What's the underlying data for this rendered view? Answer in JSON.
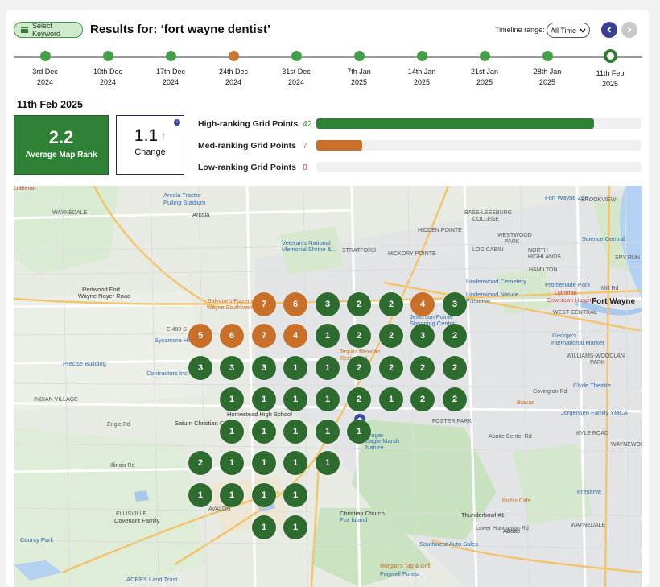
{
  "header": {
    "select_keyword_label": "Select Keyword",
    "results_title": "Results for: ‘fort wayne dentist’",
    "timeline_range_label": "Timeline range:",
    "timeline_range_value": "All Time",
    "prev_icon": "chevron-left-icon",
    "next_icon": "chevron-right-icon"
  },
  "timeline": [
    {
      "line1": "3rd Dec",
      "line2": "2024",
      "status": "green"
    },
    {
      "line1": "10th Dec",
      "line2": "2024",
      "status": "green"
    },
    {
      "line1": "17th Dec",
      "line2": "2024",
      "status": "green"
    },
    {
      "line1": "24th Dec",
      "line2": "2024",
      "status": "orange"
    },
    {
      "line1": "31st Dec",
      "line2": "2024",
      "status": "green"
    },
    {
      "line1": "7th Jan",
      "line2": "2025",
      "status": "green"
    },
    {
      "line1": "14th Jan",
      "line2": "2025",
      "status": "green"
    },
    {
      "line1": "21st Jan",
      "line2": "2025",
      "status": "green"
    },
    {
      "line1": "28th Jan",
      "line2": "2025",
      "status": "green"
    },
    {
      "line1": "11th Feb",
      "line2": "2025",
      "status": "active"
    }
  ],
  "summary": {
    "date": "11th Feb 2025",
    "avg_rank_value": "2.2",
    "avg_rank_label": "Average Map Rank",
    "change_value": "1.1",
    "change_label": "Change",
    "change_icon": "arrow-up-icon",
    "info_icon": "info-icon"
  },
  "ranking_bars": [
    {
      "label": "High-ranking Grid Points",
      "count": "42",
      "fraction": 0.855,
      "color": "#2e8135"
    },
    {
      "label": "Med-ranking Grid Points",
      "count": "7",
      "fraction": 0.142,
      "color": "#c8702a"
    },
    {
      "label": "Low-ranking Grid Points",
      "count": "0",
      "fraction": 0,
      "color": "#d04040"
    }
  ],
  "map_labels": [
    {
      "text": "Arcola Tractor",
      "kind": "poi"
    },
    {
      "text": "Pulling Stadium",
      "kind": "poi"
    },
    {
      "text": "Arcola",
      "kind": "dark"
    },
    {
      "text": "Fort Wayne Zoo",
      "kind": "poi"
    },
    {
      "text": "BASS-LEESBURG",
      "kind": "plain"
    },
    {
      "text": "COLLEGE",
      "kind": "plain"
    },
    {
      "text": "BROOKVIEW",
      "kind": "plain"
    },
    {
      "text": "Veteran's National",
      "kind": "poi"
    },
    {
      "text": "Memorial Shrine &...",
      "kind": "poi"
    },
    {
      "text": "STRATFORD",
      "kind": "plain"
    },
    {
      "text": "HICKORY POINTE",
      "kind": "plain"
    },
    {
      "text": "HIDDEN POINTE",
      "kind": "plain"
    },
    {
      "text": "WESTWOOD",
      "kind": "plain"
    },
    {
      "text": "PARK",
      "kind": "plain"
    },
    {
      "text": "LOG CABIN",
      "kind": "plain"
    },
    {
      "text": "Science Central",
      "kind": "poi"
    },
    {
      "text": "NORTH",
      "kind": "plain"
    },
    {
      "text": "HIGHLANDS",
      "kind": "plain"
    },
    {
      "text": "SPY RUN",
      "kind": "plain"
    },
    {
      "text": "HAMILTON",
      "kind": "plain"
    },
    {
      "text": "Redwood Fort",
      "kind": "dark"
    },
    {
      "text": "Wayne Noyer Road",
      "kind": "dark"
    },
    {
      "text": "Salvator's Pizzeria",
      "kind": "orange"
    },
    {
      "text": "Wayne Southwest",
      "kind": "orange"
    },
    {
      "text": "Lindenwood Cemetery",
      "kind": "poi"
    },
    {
      "text": "Lindenwood Nature",
      "kind": "poi"
    },
    {
      "text": "Preserve",
      "kind": "poi"
    },
    {
      "text": "Promenade Park",
      "kind": "poi"
    },
    {
      "text": "Lutheran",
      "kind": "red"
    },
    {
      "text": "Downtown Hospital",
      "kind": "red"
    },
    {
      "text": "Fort Wayne",
      "kind": "city"
    },
    {
      "text": "WEST CENTRAL",
      "kind": "plain"
    },
    {
      "text": "Jefferson Pointe",
      "kind": "poi"
    },
    {
      "text": "Shopping Center",
      "kind": "poi"
    },
    {
      "text": "Sycamore Hills Golf",
      "kind": "poi"
    },
    {
      "text": "George's",
      "kind": "poi"
    },
    {
      "text": "International Market",
      "kind": "poi"
    },
    {
      "text": "Tequila Mexican",
      "kind": "orange"
    },
    {
      "text": "Restaurant",
      "kind": "orange"
    },
    {
      "text": "WILLIAMS-WOODLAN",
      "kind": "plain"
    },
    {
      "text": "PARK",
      "kind": "plain"
    },
    {
      "text": "Precise Building",
      "kind": "poi"
    },
    {
      "text": "Contractors Inc.",
      "kind": "poi"
    },
    {
      "text": "Covington Rd",
      "kind": "plain"
    },
    {
      "text": "Clyde Theatre",
      "kind": "poi"
    },
    {
      "text": "Bravas",
      "kind": "orange"
    },
    {
      "text": "INDIAN VILLAGE",
      "kind": "plain"
    },
    {
      "text": "Saturn Christian Church",
      "kind": "dark"
    },
    {
      "text": "Homestead High School",
      "kind": "dark"
    },
    {
      "text": "Jorgensen Family YMCA",
      "kind": "poi"
    },
    {
      "text": "FOSTER PARK",
      "kind": "plain"
    },
    {
      "text": "Engle Rd",
      "kind": "plain"
    },
    {
      "text": "Aboite Center Rd",
      "kind": "plain"
    },
    {
      "text": "KYLE ROAD",
      "kind": "plain"
    },
    {
      "text": "WAYNEWOOD",
      "kind": "plain"
    },
    {
      "text": "Kroger",
      "kind": "poi"
    },
    {
      "text": "Eagle Marsh",
      "kind": "poi"
    },
    {
      "text": "Nature",
      "kind": "poi"
    },
    {
      "text": "Preserve",
      "kind": "poi"
    },
    {
      "text": "Thunderbowl #1",
      "kind": "dark"
    },
    {
      "text": "Rich's Cafe",
      "kind": "orange"
    },
    {
      "text": "WAYNEDALE",
      "kind": "plain"
    },
    {
      "text": "AVALON",
      "kind": "plain"
    },
    {
      "text": "ELLISVILLE",
      "kind": "plain"
    },
    {
      "text": "Covenant Family",
      "kind": "dark"
    },
    {
      "text": "Christian Church",
      "kind": "dark"
    },
    {
      "text": "Fox Island",
      "kind": "poi"
    },
    {
      "text": "County Park",
      "kind": "poi"
    },
    {
      "text": "Southwest Auto Sales",
      "kind": "poi"
    },
    {
      "text": "Lower Huntington Rd",
      "kind": "plain"
    },
    {
      "text": "Morgan's Tap & Grill",
      "kind": "orange"
    },
    {
      "text": "Fogwell Forest",
      "kind": "poi"
    },
    {
      "text": "ACRES Land Trust",
      "kind": "poi"
    },
    {
      "text": "Aboite",
      "kind": "dark"
    },
    {
      "text": "WAYNEDALE",
      "kind": "plain"
    },
    {
      "text": "E 400 S",
      "kind": "plain"
    },
    {
      "text": "Illinois Rd",
      "kind": "plain"
    },
    {
      "text": "Mill Rd",
      "kind": "plain"
    },
    {
      "text": "Lutheran",
      "kind": "red"
    }
  ],
  "grid_pins": [
    {
      "rank": "7",
      "level": "med"
    },
    {
      "rank": "6",
      "level": "med"
    },
    {
      "rank": "3",
      "level": "high"
    },
    {
      "rank": "2",
      "level": "high"
    },
    {
      "rank": "2",
      "level": "high"
    },
    {
      "rank": "4",
      "level": "med"
    },
    {
      "rank": "3",
      "level": "high"
    },
    {
      "rank": "5",
      "level": "med"
    },
    {
      "rank": "6",
      "level": "med"
    },
    {
      "rank": "7",
      "level": "med"
    },
    {
      "rank": "4",
      "level": "med"
    },
    {
      "rank": "1",
      "level": "high"
    },
    {
      "rank": "2",
      "level": "high"
    },
    {
      "rank": "2",
      "level": "high"
    },
    {
      "rank": "3",
      "level": "high"
    },
    {
      "rank": "2",
      "level": "high"
    },
    {
      "rank": "3",
      "level": "high"
    },
    {
      "rank": "3",
      "level": "high"
    },
    {
      "rank": "3",
      "level": "high"
    },
    {
      "rank": "1",
      "level": "high"
    },
    {
      "rank": "1",
      "level": "high"
    },
    {
      "rank": "2",
      "level": "high"
    },
    {
      "rank": "2",
      "level": "high"
    },
    {
      "rank": "2",
      "level": "high"
    },
    {
      "rank": "2",
      "level": "high"
    },
    {
      "rank": "1",
      "level": "high"
    },
    {
      "rank": "1",
      "level": "high"
    },
    {
      "rank": "1",
      "level": "high"
    },
    {
      "rank": "1",
      "level": "high"
    },
    {
      "rank": "2",
      "level": "high"
    },
    {
      "rank": "1",
      "level": "high"
    },
    {
      "rank": "2",
      "level": "high"
    },
    {
      "rank": "2",
      "level": "high"
    },
    {
      "rank": "1",
      "level": "high"
    },
    {
      "rank": "1",
      "level": "high"
    },
    {
      "rank": "1",
      "level": "high"
    },
    {
      "rank": "1",
      "level": "high"
    },
    {
      "rank": "1",
      "level": "high"
    },
    {
      "rank": "2",
      "level": "high"
    },
    {
      "rank": "1",
      "level": "high"
    },
    {
      "rank": "1",
      "level": "high"
    },
    {
      "rank": "1",
      "level": "high"
    },
    {
      "rank": "1",
      "level": "high"
    },
    {
      "rank": "1",
      "level": "high"
    },
    {
      "rank": "1",
      "level": "high"
    },
    {
      "rank": "1",
      "level": "high"
    },
    {
      "rank": "1",
      "level": "high"
    },
    {
      "rank": "1",
      "level": "high"
    },
    {
      "rank": "1",
      "level": "high"
    }
  ]
}
